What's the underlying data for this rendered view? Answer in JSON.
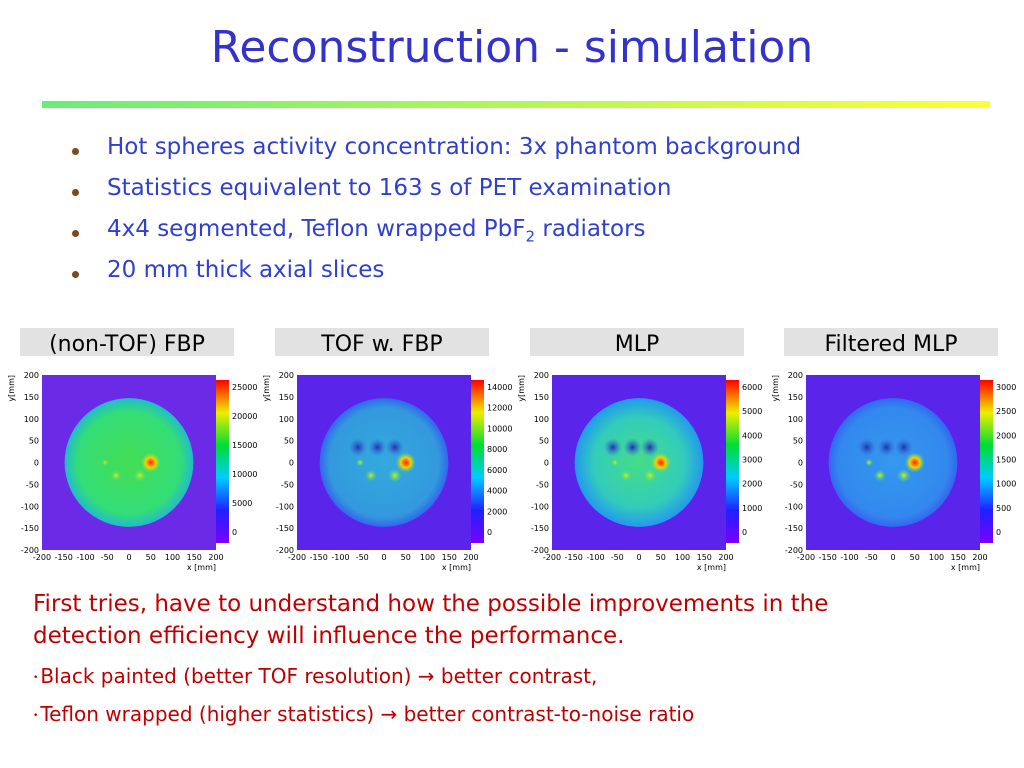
{
  "title": "Reconstruction - simulation",
  "bullets": [
    [
      "Hot spheres activity concentration: 3x phantom background"
    ],
    [
      "Statistics equivalent to 163 s of PET examination"
    ],
    [
      "4x4 segmented, Teflon wrapped PbF",
      "2",
      " radiators"
    ],
    [
      "20 mm thick axial slices"
    ]
  ],
  "panels": [
    {
      "label": "(non-TOF) FBP",
      "x_label": "x [mm]",
      "y_label": "y[mm]",
      "xticks": [
        -200,
        -150,
        -100,
        -50,
        0,
        50,
        100,
        150,
        200
      ],
      "yticks": [
        200,
        150,
        100,
        50,
        0,
        -50,
        -100,
        -150,
        -200
      ],
      "colorbar_ticks": [
        25000,
        20000,
        15000,
        10000,
        5000,
        0
      ]
    },
    {
      "label": "TOF w. FBP",
      "x_label": "x [mm]",
      "y_label": "y[mm]",
      "xticks": [
        -200,
        -150,
        -100,
        -50,
        0,
        50,
        100,
        150,
        200
      ],
      "yticks": [
        200,
        150,
        100,
        50,
        0,
        -50,
        -100,
        -150,
        -200
      ],
      "colorbar_ticks": [
        14000,
        12000,
        10000,
        8000,
        6000,
        4000,
        2000,
        0
      ]
    },
    {
      "label": "MLP",
      "x_label": "x [mm]",
      "y_label": "y[mm]",
      "xticks": [
        -200,
        -150,
        -100,
        -50,
        0,
        50,
        100,
        150,
        200
      ],
      "yticks": [
        200,
        150,
        100,
        50,
        0,
        -50,
        -100,
        -150,
        -200
      ],
      "colorbar_ticks": [
        6000,
        5000,
        4000,
        3000,
        2000,
        1000,
        0
      ]
    },
    {
      "label": "Filtered MLP",
      "x_label": "x [mm]",
      "y_label": "y[mm]",
      "xticks": [
        -200,
        -150,
        -100,
        -50,
        0,
        50,
        100,
        150,
        200
      ],
      "yticks": [
        200,
        150,
        100,
        50,
        0,
        -50,
        -100,
        -150,
        -200
      ],
      "colorbar_ticks": [
        3000,
        2500,
        2000,
        1500,
        1000,
        500,
        0
      ]
    }
  ],
  "conclusion": "First tries, have to understand how the possible improvements in the detection efficiency will influence the performance.",
  "sub_bullets": [
    "Black painted (better TOF resolution) → better contrast,",
    "Teflon wrapped (higher statistics) → better contrast-to-noise ratio"
  ]
}
